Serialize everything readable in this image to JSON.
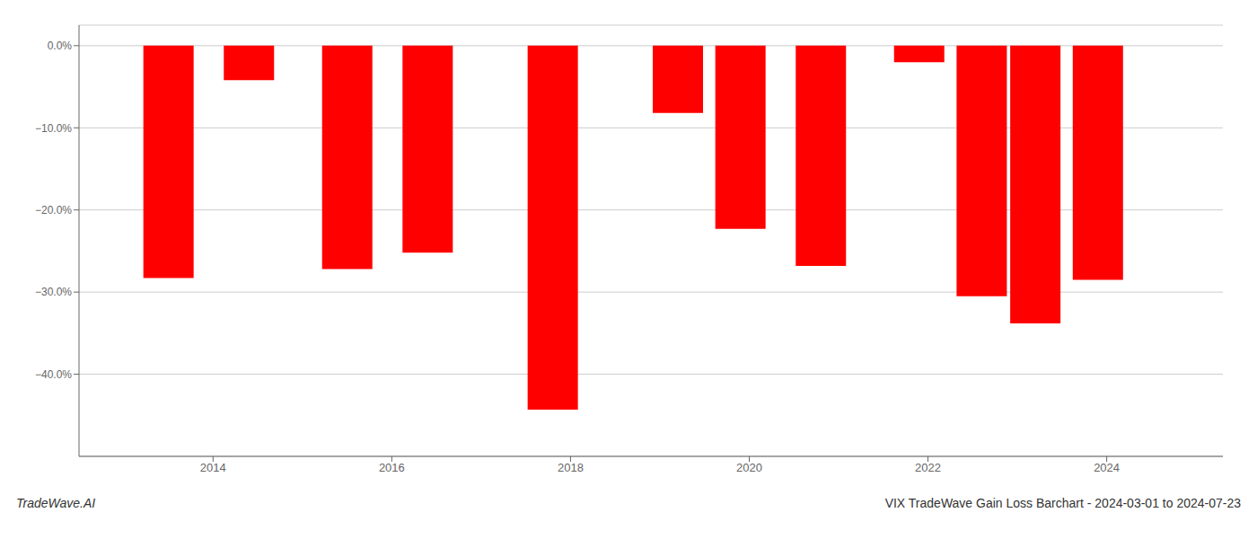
{
  "chart_data": {
    "type": "bar",
    "x": [
      2013.5,
      2014.4,
      2015.5,
      2016.4,
      2017.8,
      2019.2,
      2019.9,
      2020.8,
      2021.9,
      2022.6,
      2023.2,
      2023.9
    ],
    "values": [
      -0.283,
      -0.042,
      -0.272,
      -0.252,
      -0.443,
      -0.082,
      -0.223,
      -0.268,
      -0.02,
      -0.305,
      -0.338,
      -0.285
    ],
    "color": "#ff0000",
    "xlim": [
      2012.5,
      2025.3
    ],
    "xticks": [
      2014,
      2016,
      2018,
      2020,
      2022,
      2024
    ],
    "ylim": [
      -0.5,
      0.025
    ],
    "yticks": [
      {
        "value": 0.0,
        "label": "0.0%"
      },
      {
        "value": -0.1,
        "label": "−10.0%"
      },
      {
        "value": -0.2,
        "label": "−20.0%"
      },
      {
        "value": -0.3,
        "label": "−30.0%"
      },
      {
        "value": -0.4,
        "label": "−40.0%"
      }
    ],
    "grid": true,
    "annotations": [
      "TradeWave.AI",
      "VIX TradeWave Gain Loss Barchart - 2024-03-01 to 2024-07-23"
    ]
  }
}
